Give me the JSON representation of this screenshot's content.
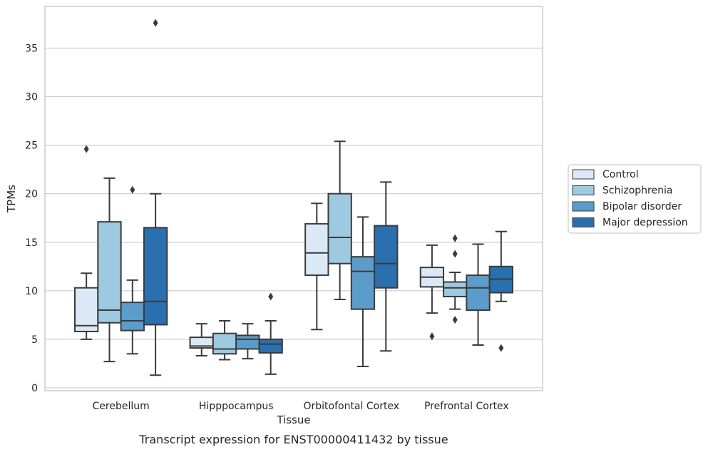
{
  "caption": "Transcript expression for ENST00000411432 by tissue",
  "chart_data": {
    "type": "box",
    "xlabel": "Tissue",
    "ylabel": "TPMs",
    "ylim": [
      -0.3,
      39.3
    ],
    "yticks": [
      0,
      5,
      10,
      15,
      20,
      25,
      30,
      35
    ],
    "grid": "horizontal",
    "legend_placement": "right",
    "categories": [
      "Cerebellum",
      "Hipppocampus",
      "Orbitofontal Cortex",
      "Prefrontal Cortex"
    ],
    "series": [
      {
        "name": "Control",
        "color": "#dbe9f6",
        "boxes": [
          {
            "whisker_low": 5.0,
            "q1": 5.8,
            "median": 6.4,
            "q3": 10.3,
            "whisker_high": 11.8,
            "outliers": [
              24.6
            ]
          },
          {
            "whisker_low": 3.3,
            "q1": 4.1,
            "median": 4.3,
            "q3": 5.2,
            "whisker_high": 6.6,
            "outliers": []
          },
          {
            "whisker_low": 6.0,
            "q1": 11.6,
            "median": 13.9,
            "q3": 16.9,
            "whisker_high": 19.0,
            "outliers": []
          },
          {
            "whisker_low": 7.7,
            "q1": 10.4,
            "median": 11.4,
            "q3": 12.4,
            "whisker_high": 14.7,
            "outliers": [
              5.3
            ]
          }
        ]
      },
      {
        "name": "Schizophrenia",
        "color": "#9ecae1",
        "boxes": [
          {
            "whisker_low": 2.7,
            "q1": 6.7,
            "median": 8.0,
            "q3": 17.1,
            "whisker_high": 21.6,
            "outliers": []
          },
          {
            "whisker_low": 2.9,
            "q1": 3.5,
            "median": 4.0,
            "q3": 5.6,
            "whisker_high": 6.9,
            "outliers": []
          },
          {
            "whisker_low": 9.1,
            "q1": 12.8,
            "median": 15.5,
            "q3": 20.0,
            "whisker_high": 25.4,
            "outliers": []
          },
          {
            "whisker_low": 8.1,
            "q1": 9.4,
            "median": 10.3,
            "q3": 10.9,
            "whisker_high": 11.9,
            "outliers": [
              15.4,
              13.8,
              7.0
            ]
          }
        ]
      },
      {
        "name": "Bipolar disorder",
        "color": "#5b9ccb",
        "boxes": [
          {
            "whisker_low": 3.5,
            "q1": 5.9,
            "median": 6.9,
            "q3": 8.8,
            "whisker_high": 11.1,
            "outliers": [
              20.4
            ]
          },
          {
            "whisker_low": 3.0,
            "q1": 4.0,
            "median": 5.0,
            "q3": 5.4,
            "whisker_high": 6.6,
            "outliers": []
          },
          {
            "whisker_low": 2.2,
            "q1": 8.1,
            "median": 12.0,
            "q3": 13.5,
            "whisker_high": 17.6,
            "outliers": []
          },
          {
            "whisker_low": 4.4,
            "q1": 8.0,
            "median": 10.3,
            "q3": 11.6,
            "whisker_high": 14.8,
            "outliers": []
          }
        ]
      },
      {
        "name": "Major depression",
        "color": "#2a6fae",
        "boxes": [
          {
            "whisker_low": 1.3,
            "q1": 6.5,
            "median": 8.9,
            "q3": 16.5,
            "whisker_high": 20.0,
            "outliers": [
              37.6
            ]
          },
          {
            "whisker_low": 1.4,
            "q1": 3.6,
            "median": 4.5,
            "q3": 5.0,
            "whisker_high": 6.9,
            "outliers": [
              9.4
            ]
          },
          {
            "whisker_low": 3.8,
            "q1": 10.3,
            "median": 12.8,
            "q3": 16.7,
            "whisker_high": 21.2,
            "outliers": []
          },
          {
            "whisker_low": 8.9,
            "q1": 9.8,
            "median": 11.2,
            "q3": 12.5,
            "whisker_high": 16.1,
            "outliers": [
              4.1
            ]
          }
        ]
      }
    ]
  }
}
